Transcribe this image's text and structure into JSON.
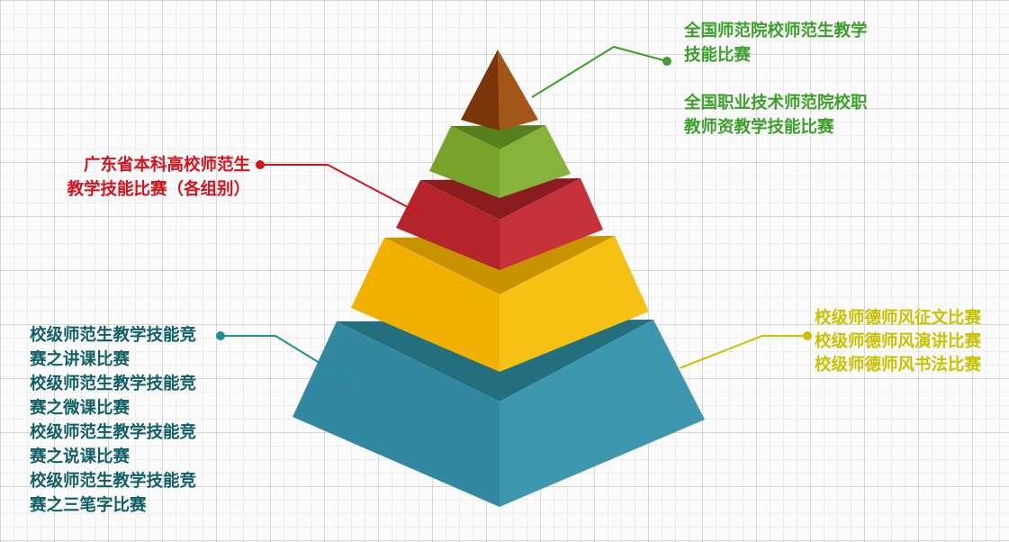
{
  "colors": {
    "green_dark": "#3aa02a",
    "red": "#d3131b",
    "teal": "#1f8f8f",
    "teal_text": "#0f5f66",
    "yellow": "#c9c200",
    "apex": "#9b4a12",
    "tier_green": "#7fae2e",
    "tier_red": "#c0272d",
    "tier_yellow": "#f5b400",
    "tier_teal": "#2f8ca3"
  },
  "labels": {
    "national_1": [
      "全国师范院校师范生教学",
      "技能比赛"
    ],
    "national_2": [
      "全国职业技术师范院校职",
      "教师资教学技能比赛"
    ],
    "provincial": [
      "广东省本科高校师范生",
      "教学技能比赛（各组别）"
    ],
    "school_skills": [
      "校级师范生教学技能竞",
      "赛之讲课比赛",
      "校级师范生教学技能竞",
      "赛之微课比赛",
      "校级师范生教学技能竞",
      "赛之说课比赛",
      "校级师范生教学技能竞",
      "赛之三笔字比赛"
    ],
    "school_ethics": [
      "校级师德师风征文比赛",
      "校级师德师风演讲比赛",
      "校级师德师风书法比赛"
    ]
  }
}
